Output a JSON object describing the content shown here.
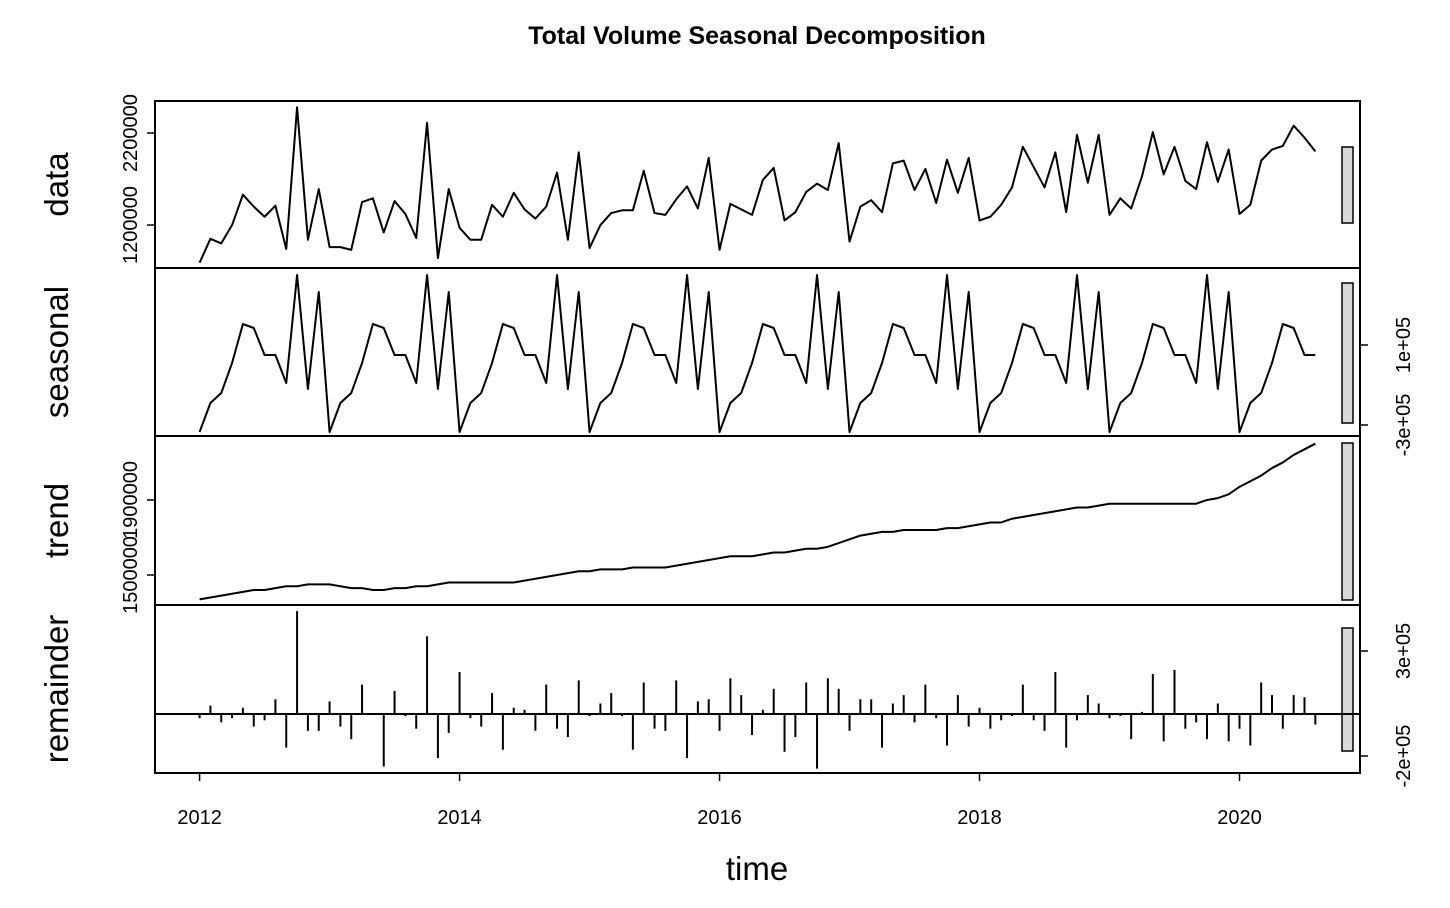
{
  "chart_data": {
    "type": "stl",
    "title": "Total Volume Seasonal Decomposition",
    "xlabel": "time",
    "xlim": [
      2011.657,
      2020.927
    ],
    "xticks": [
      2012,
      2014,
      2016,
      2018,
      2020
    ],
    "x": [
      2012,
      2012.0833,
      2012.1667,
      2012.25,
      2012.3333,
      2012.4167,
      2012.5,
      2012.5833,
      2012.6667,
      2012.75,
      2012.8333,
      2012.9167,
      2013,
      2013.0833,
      2013.1667,
      2013.25,
      2013.3333,
      2013.4167,
      2013.5,
      2013.5833,
      2013.6667,
      2013.75,
      2013.8333,
      2013.9167,
      2014,
      2014.0833,
      2014.1667,
      2014.25,
      2014.3333,
      2014.4167,
      2014.5,
      2014.5833,
      2014.6667,
      2014.75,
      2014.8333,
      2014.9167,
      2015,
      2015.0833,
      2015.1667,
      2015.25,
      2015.3333,
      2015.4167,
      2015.5,
      2015.5833,
      2015.6667,
      2015.75,
      2015.8333,
      2015.9167,
      2016,
      2016.0833,
      2016.1667,
      2016.25,
      2016.3333,
      2016.4167,
      2016.5,
      2016.5833,
      2016.6667,
      2016.75,
      2016.8333,
      2016.9167,
      2017,
      2017.0833,
      2017.1667,
      2017.25,
      2017.3333,
      2017.4167,
      2017.5,
      2017.5833,
      2017.6667,
      2017.75,
      2017.8333,
      2017.9167,
      2018,
      2018.0833,
      2018.1667,
      2018.25,
      2018.3333,
      2018.4167,
      2018.5,
      2018.5833,
      2018.6667,
      2018.75,
      2018.8333,
      2018.9167,
      2019,
      2019.0833,
      2019.1667,
      2019.25,
      2019.3333,
      2019.4167,
      2019.5,
      2019.5833,
      2019.6667,
      2019.75,
      2019.8333,
      2019.9167,
      2020,
      2020.0833,
      2020.1667,
      2020.25,
      2020.3333,
      2020.4167,
      2020.5,
      2020.5833
    ],
    "panels": [
      {
        "type": "line",
        "ylabel": "data",
        "tick_side": "left",
        "ylim": [
          733000,
          2548000
        ],
        "yticks": [
          1200000,
          2200000
        ],
        "values": [
          790000,
          1050000,
          1000000,
          1200000,
          1530000,
          1400000,
          1290000,
          1410000,
          940000,
          2480000,
          1040000,
          1590000,
          960000,
          960000,
          930000,
          1450000,
          1490000,
          1120000,
          1460000,
          1320000,
          1060000,
          2310000,
          840000,
          1590000,
          1170000,
          1040000,
          1040000,
          1420000,
          1290000,
          1550000,
          1370000,
          1270000,
          1400000,
          1770000,
          1040000,
          1990000,
          950000,
          1200000,
          1330000,
          1360000,
          1360000,
          1790000,
          1330000,
          1310000,
          1480000,
          1620000,
          1380000,
          1930000,
          930000,
          1430000,
          1370000,
          1310000,
          1690000,
          1820000,
          1250000,
          1340000,
          1560000,
          1650000,
          1580000,
          2090000,
          1020000,
          1400000,
          1470000,
          1340000,
          1870000,
          1900000,
          1580000,
          1810000,
          1440000,
          1910000,
          1550000,
          1930000,
          1250000,
          1290000,
          1420000,
          1610000,
          2050000,
          1830000,
          1610000,
          1990000,
          1340000,
          2180000,
          1660000,
          2180000,
          1310000,
          1490000,
          1380000,
          1730000,
          2210000,
          1750000,
          2050000,
          1680000,
          1590000,
          2100000,
          1670000,
          2020000,
          1320000,
          1420000,
          1900000,
          2020000,
          2060000,
          2280000,
          2150000,
          2000000
        ]
      },
      {
        "type": "line",
        "ylabel": "seasonal",
        "tick_side": "right",
        "ylim": [
          -355000,
          485000
        ],
        "yticks": [
          {
            "value": -300000,
            "label": "-3e+05"
          },
          {
            "value": 100000,
            "label": "1e+05"
          }
        ],
        "values": [
          -335000,
          -190000,
          -140000,
          10000,
          205000,
          185000,
          50000,
          50000,
          -90000,
          450000,
          -120000,
          365000,
          -335000,
          -190000,
          -140000,
          10000,
          205000,
          185000,
          50000,
          50000,
          -90000,
          450000,
          -120000,
          365000,
          -335000,
          -190000,
          -140000,
          10000,
          205000,
          185000,
          50000,
          50000,
          -90000,
          450000,
          -120000,
          365000,
          -335000,
          -190000,
          -140000,
          10000,
          205000,
          185000,
          50000,
          50000,
          -90000,
          450000,
          -120000,
          365000,
          -335000,
          -190000,
          -140000,
          10000,
          205000,
          185000,
          50000,
          50000,
          -90000,
          450000,
          -120000,
          365000,
          -335000,
          -190000,
          -140000,
          10000,
          205000,
          185000,
          50000,
          50000,
          -90000,
          450000,
          -120000,
          365000,
          -335000,
          -190000,
          -140000,
          10000,
          205000,
          185000,
          50000,
          50000,
          -90000,
          450000,
          -120000,
          365000,
          -335000,
          -190000,
          -140000,
          10000,
          205000,
          185000,
          50000,
          50000,
          -90000,
          450000,
          -120000,
          365000,
          -335000,
          -190000,
          -140000,
          10000,
          205000,
          185000,
          50000,
          50000
        ]
      },
      {
        "type": "line",
        "ylabel": "trend",
        "tick_side": "left",
        "ylim": [
          1340000,
          2241000
        ],
        "yticks": [
          1500000,
          1900000
        ],
        "values": [
          1370000,
          1380000,
          1390000,
          1400000,
          1410000,
          1420000,
          1420000,
          1430000,
          1440000,
          1440000,
          1450000,
          1450000,
          1450000,
          1440000,
          1430000,
          1430000,
          1420000,
          1420000,
          1430000,
          1430000,
          1440000,
          1440000,
          1450000,
          1460000,
          1460000,
          1460000,
          1460000,
          1460000,
          1460000,
          1460000,
          1470000,
          1480000,
          1490000,
          1500000,
          1510000,
          1520000,
          1520000,
          1530000,
          1530000,
          1530000,
          1540000,
          1540000,
          1540000,
          1540000,
          1550000,
          1560000,
          1570000,
          1580000,
          1590000,
          1600000,
          1600000,
          1600000,
          1610000,
          1620000,
          1620000,
          1630000,
          1640000,
          1640000,
          1650000,
          1670000,
          1690000,
          1710000,
          1720000,
          1730000,
          1730000,
          1740000,
          1740000,
          1740000,
          1740000,
          1750000,
          1750000,
          1760000,
          1770000,
          1780000,
          1780000,
          1800000,
          1810000,
          1820000,
          1830000,
          1840000,
          1850000,
          1860000,
          1860000,
          1870000,
          1880000,
          1880000,
          1880000,
          1880000,
          1880000,
          1880000,
          1880000,
          1880000,
          1880000,
          1900000,
          1910000,
          1930000,
          1970000,
          2000000,
          2030000,
          2070000,
          2100000,
          2140000,
          2170000,
          2200000
        ]
      },
      {
        "type": "bar",
        "ylabel": "remainder",
        "tick_side": "right",
        "ylim": [
          -281000,
          519000
        ],
        "yticks": [
          {
            "value": -200000,
            "label": "-2e+05"
          },
          {
            "value": 300000,
            "label": "3e+05"
          }
        ],
        "values": [
          -20000,
          40000,
          -40000,
          -20000,
          30000,
          -60000,
          -30000,
          70000,
          -160000,
          490000,
          -80000,
          -80000,
          60000,
          -60000,
          -120000,
          140000,
          0,
          -250000,
          110000,
          -10000,
          -70000,
          370000,
          -210000,
          -90000,
          200000,
          -20000,
          -60000,
          100000,
          -170000,
          30000,
          20000,
          -80000,
          140000,
          -70000,
          -110000,
          160000,
          -10000,
          50000,
          100000,
          -10000,
          -170000,
          150000,
          -70000,
          -80000,
          160000,
          -210000,
          60000,
          70000,
          -80000,
          170000,
          90000,
          -100000,
          20000,
          120000,
          -180000,
          -110000,
          150000,
          -260000,
          170000,
          120000,
          -80000,
          70000,
          70000,
          -160000,
          50000,
          90000,
          -40000,
          140000,
          -20000,
          -150000,
          90000,
          -60000,
          30000,
          -70000,
          -30000,
          -10000,
          140000,
          -30000,
          -80000,
          200000,
          -160000,
          -30000,
          90000,
          50000,
          -20000,
          -10000,
          -120000,
          10000,
          190000,
          -130000,
          210000,
          -70000,
          -40000,
          -120000,
          50000,
          -130000,
          -70000,
          -150000,
          150000,
          90000,
          -70000,
          90000,
          80000,
          -50000
        ]
      }
    ]
  }
}
